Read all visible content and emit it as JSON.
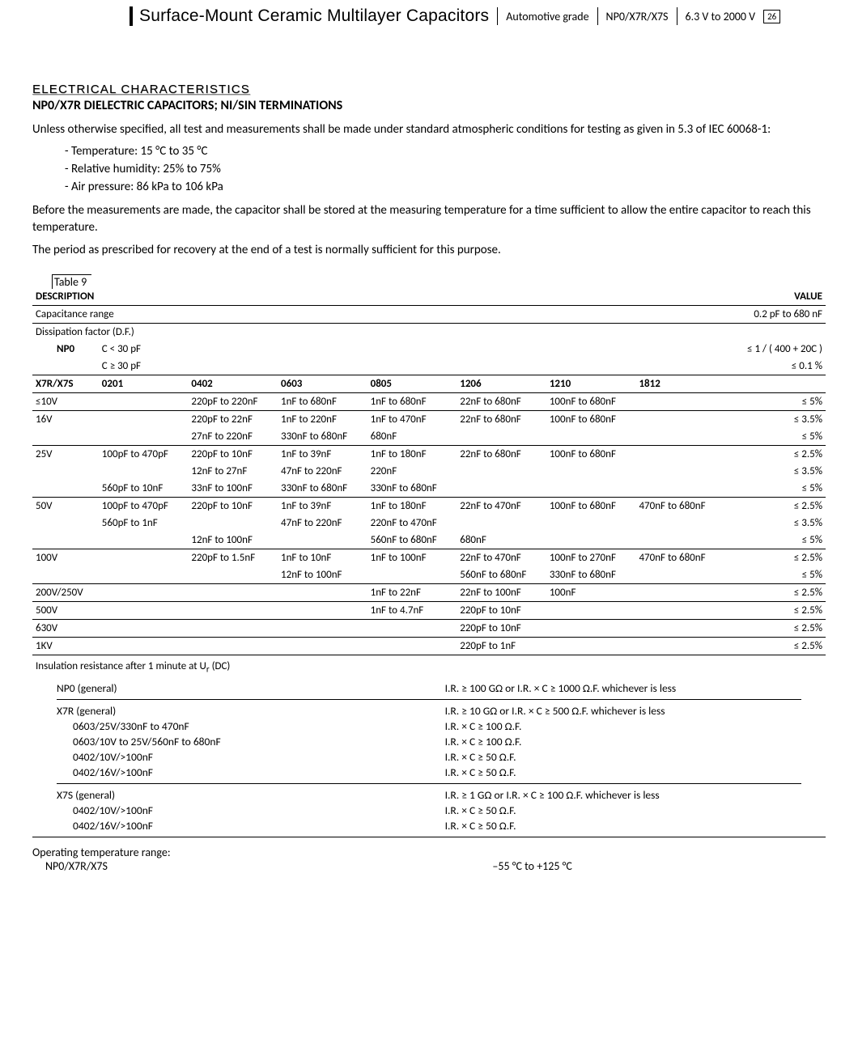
{
  "header": {
    "main": "Surface-Mount Ceramic Multilayer Capacitors",
    "grade": "Automotive grade",
    "dielectric": "NP0/X7R/X7S",
    "vrange": "6.3 V to 2000 V",
    "page": "26"
  },
  "section": {
    "title": "ELECTRICAL CHARACTERISTICS",
    "subtitle": "NP0/X7R DIELECTRIC CAPACITORS; NI/SIN TERMINATIONS"
  },
  "intro": {
    "p1": "Unless otherwise specified, all test and measurements shall be made under standard atmospheric conditions for testing as given in 5.3 of IEC 60068-1:",
    "cond1": "Temperature: 15 °C to 35 °C",
    "cond2": "Relative humidity: 25% to 75%",
    "cond3": "Air pressure: 86 kPa to 106 kPa",
    "p2": "Before the measurements are made, the capacitor shall be stored at the measuring temperature for a time sufficient to allow the entire capacitor to reach this temperature.",
    "p3": "The period as prescribed for recovery at the end of a test is normally sufficient for this purpose."
  },
  "table9": {
    "label": "Table 9",
    "desc_header": "DESCRIPTION",
    "value_header": "VALUE",
    "cap_range_label": "Capacitance range",
    "cap_range_value": "0.2 pF to 680 nF",
    "df_label": "Dissipation factor (D.F.)",
    "npo_label": "NP0",
    "npo_c1": "C < 30 pF",
    "npo_c1_val": "≤ 1 / ( 400 + 20C )",
    "npo_c2": "C ≥ 30 pF",
    "npo_c2_val": "≤ 0.1 %",
    "x7_label": "X7R/X7S",
    "sizes": [
      "0201",
      "0402",
      "0603",
      "0805",
      "1206",
      "1210",
      "1812"
    ],
    "rows": [
      {
        "v": "≤10V",
        "c": [
          "",
          "220pF to 220nF",
          "1nF to 680nF",
          "1nF to 680nF",
          "22nF to 680nF",
          "100nF to 680nF",
          ""
        ],
        "val": "≤ 5%",
        "hr": true
      },
      {
        "v": "16V",
        "c": [
          "",
          "220pF to 22nF",
          "1nF to 220nF",
          "1nF to 470nF",
          "22nF to 680nF",
          "100nF to 680nF",
          ""
        ],
        "val": "≤ 3.5%"
      },
      {
        "v": "",
        "c": [
          "",
          "27nF to 220nF",
          "330nF to 680nF",
          "680nF",
          "",
          "",
          ""
        ],
        "val": "≤ 5%",
        "hr": true
      },
      {
        "v": "25V",
        "c": [
          "100pF to 470pF",
          "220pF to 10nF",
          "1nF to 39nF",
          "1nF to 180nF",
          "22nF to 680nF",
          "100nF to 680nF",
          ""
        ],
        "val": "≤ 2.5%"
      },
      {
        "v": "",
        "c": [
          "",
          "12nF to 27nF",
          "47nF to 220nF",
          "220nF",
          "",
          "",
          ""
        ],
        "val": "≤ 3.5%"
      },
      {
        "v": "",
        "c": [
          "560pF to 10nF",
          "33nF to 100nF",
          "330nF to 680nF",
          "330nF to 680nF",
          "",
          "",
          ""
        ],
        "val": "≤ 5%",
        "hr": true
      },
      {
        "v": "50V",
        "c": [
          "100pF to 470pF",
          "220pF to 10nF",
          "1nF to 39nF",
          "1nF to 180nF",
          "22nF to 470nF",
          "100nF to 680nF",
          "470nF to 680nF"
        ],
        "val": "≤ 2.5%"
      },
      {
        "v": "",
        "c": [
          "560pF to 1nF",
          "",
          "47nF to 220nF",
          "220nF to 470nF",
          "",
          "",
          ""
        ],
        "val": "≤ 3.5%"
      },
      {
        "v": "",
        "c": [
          "",
          "12nF to 100nF",
          "",
          "560nF to 680nF",
          "680nF",
          "",
          ""
        ],
        "val": "≤ 5%",
        "hr": true
      },
      {
        "v": "100V",
        "c": [
          "",
          "220pF to 1.5nF",
          "1nF to 10nF",
          "1nF to 100nF",
          "22nF to 470nF",
          "100nF to 270nF",
          "470nF to 680nF"
        ],
        "val": "≤ 2.5%"
      },
      {
        "v": "",
        "c": [
          "",
          "",
          "12nF to 100nF",
          "",
          "560nF to 680nF",
          "330nF to 680nF",
          ""
        ],
        "val": "≤ 5%",
        "hr": true
      },
      {
        "v": "200V/250V",
        "c": [
          "",
          "",
          "",
          "1nF to 22nF",
          "22nF to 100nF",
          "100nF",
          ""
        ],
        "val": "≤ 2.5%",
        "hr": true
      },
      {
        "v": "500V",
        "c": [
          "",
          "",
          "",
          "1nF to 4.7nF",
          "220pF to 10nF",
          "",
          ""
        ],
        "val": "≤ 2.5%",
        "hr": true
      },
      {
        "v": "630V",
        "c": [
          "",
          "",
          "",
          "",
          "220pF to 10nF",
          "",
          ""
        ],
        "val": "≤ 2.5%",
        "hr": true
      },
      {
        "v": "1KV",
        "c": [
          "",
          "",
          "",
          "",
          "220pF to 1nF",
          "",
          ""
        ],
        "val": "≤ 2.5%",
        "hr": true
      }
    ],
    "ir_header": "Insulation resistance after 1 minute at U",
    "ir_header_sub": "r",
    "ir_header_tail": " (DC)",
    "npo_gen": "NP0 (general)",
    "npo_gen_val": "I.R. ≥ 100 GΩ or I.R. × C ≥ 1000 Ω.F. whichever is less",
    "x7r_rows_left": [
      "X7R (general)",
      "0603/25V/330nF to 470nF",
      "0603/10V to 25V/560nF to 680nF",
      "0402/10V/>100nF",
      "0402/16V/>100nF"
    ],
    "x7r_rows_right": [
      "I.R. ≥ 10 GΩ or I.R. × C ≥ 500 Ω.F. whichever is less",
      "I.R. × C ≥ 100 Ω.F.",
      "I.R. × C ≥ 100 Ω.F.",
      "I.R. × C ≥ 50 Ω.F.",
      "I.R. × C ≥ 50 Ω.F."
    ],
    "x7s_rows_left": [
      "X7S  (general)",
      "0402/10V/>100nF",
      "0402/16V/>100nF"
    ],
    "x7s_rows_right": [
      "I.R. ≥ 1 GΩ or I.R. × C ≥ 100 Ω.F. whichever is less",
      "I.R. × C ≥ 50 Ω.F.",
      "I.R. × C ≥ 50 Ω.F."
    ],
    "otr_label": "Operating temperature range:",
    "otr_sub": "NP0/X7R/X7S",
    "otr_val": "–55 °C to +125 °C"
  }
}
